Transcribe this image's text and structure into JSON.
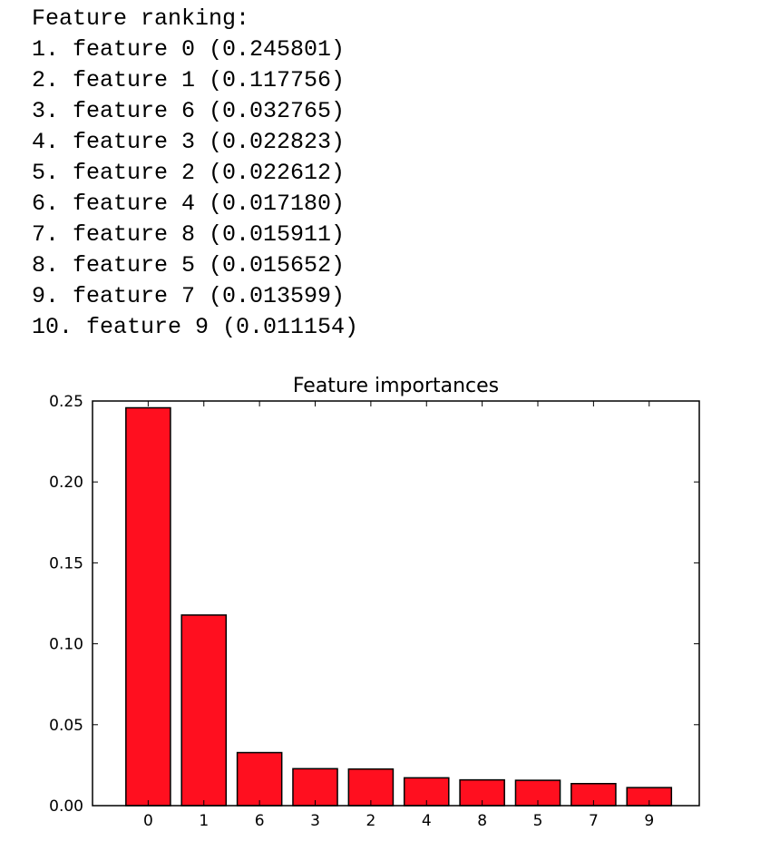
{
  "ranking": {
    "heading": "Feature ranking:",
    "lines": [
      "1. feature 0 (0.245801)",
      "2. feature 1 (0.117756)",
      "3. feature 6 (0.032765)",
      "4. feature 3 (0.022823)",
      "5. feature 2 (0.022612)",
      "6. feature 4 (0.017180)",
      "7. feature 8 (0.015911)",
      "8. feature 5 (0.015652)",
      "9. feature 7 (0.013599)",
      "10. feature 9 (0.011154)"
    ]
  },
  "chart_data": {
    "type": "bar",
    "title": "Feature importances",
    "xlabel": "",
    "ylabel": "",
    "categories": [
      "0",
      "1",
      "6",
      "3",
      "2",
      "4",
      "8",
      "5",
      "7",
      "9"
    ],
    "values": [
      0.245801,
      0.117756,
      0.032765,
      0.022823,
      0.022612,
      0.01718,
      0.015911,
      0.015652,
      0.013599,
      0.011154
    ],
    "ylim": [
      0,
      0.25
    ],
    "yticks": [
      "0.00",
      "0.05",
      "0.10",
      "0.15",
      "0.20",
      "0.25"
    ],
    "bar_color": "#ff0f1f",
    "edge_color": "#000000",
    "grid": false,
    "legend": "none"
  }
}
